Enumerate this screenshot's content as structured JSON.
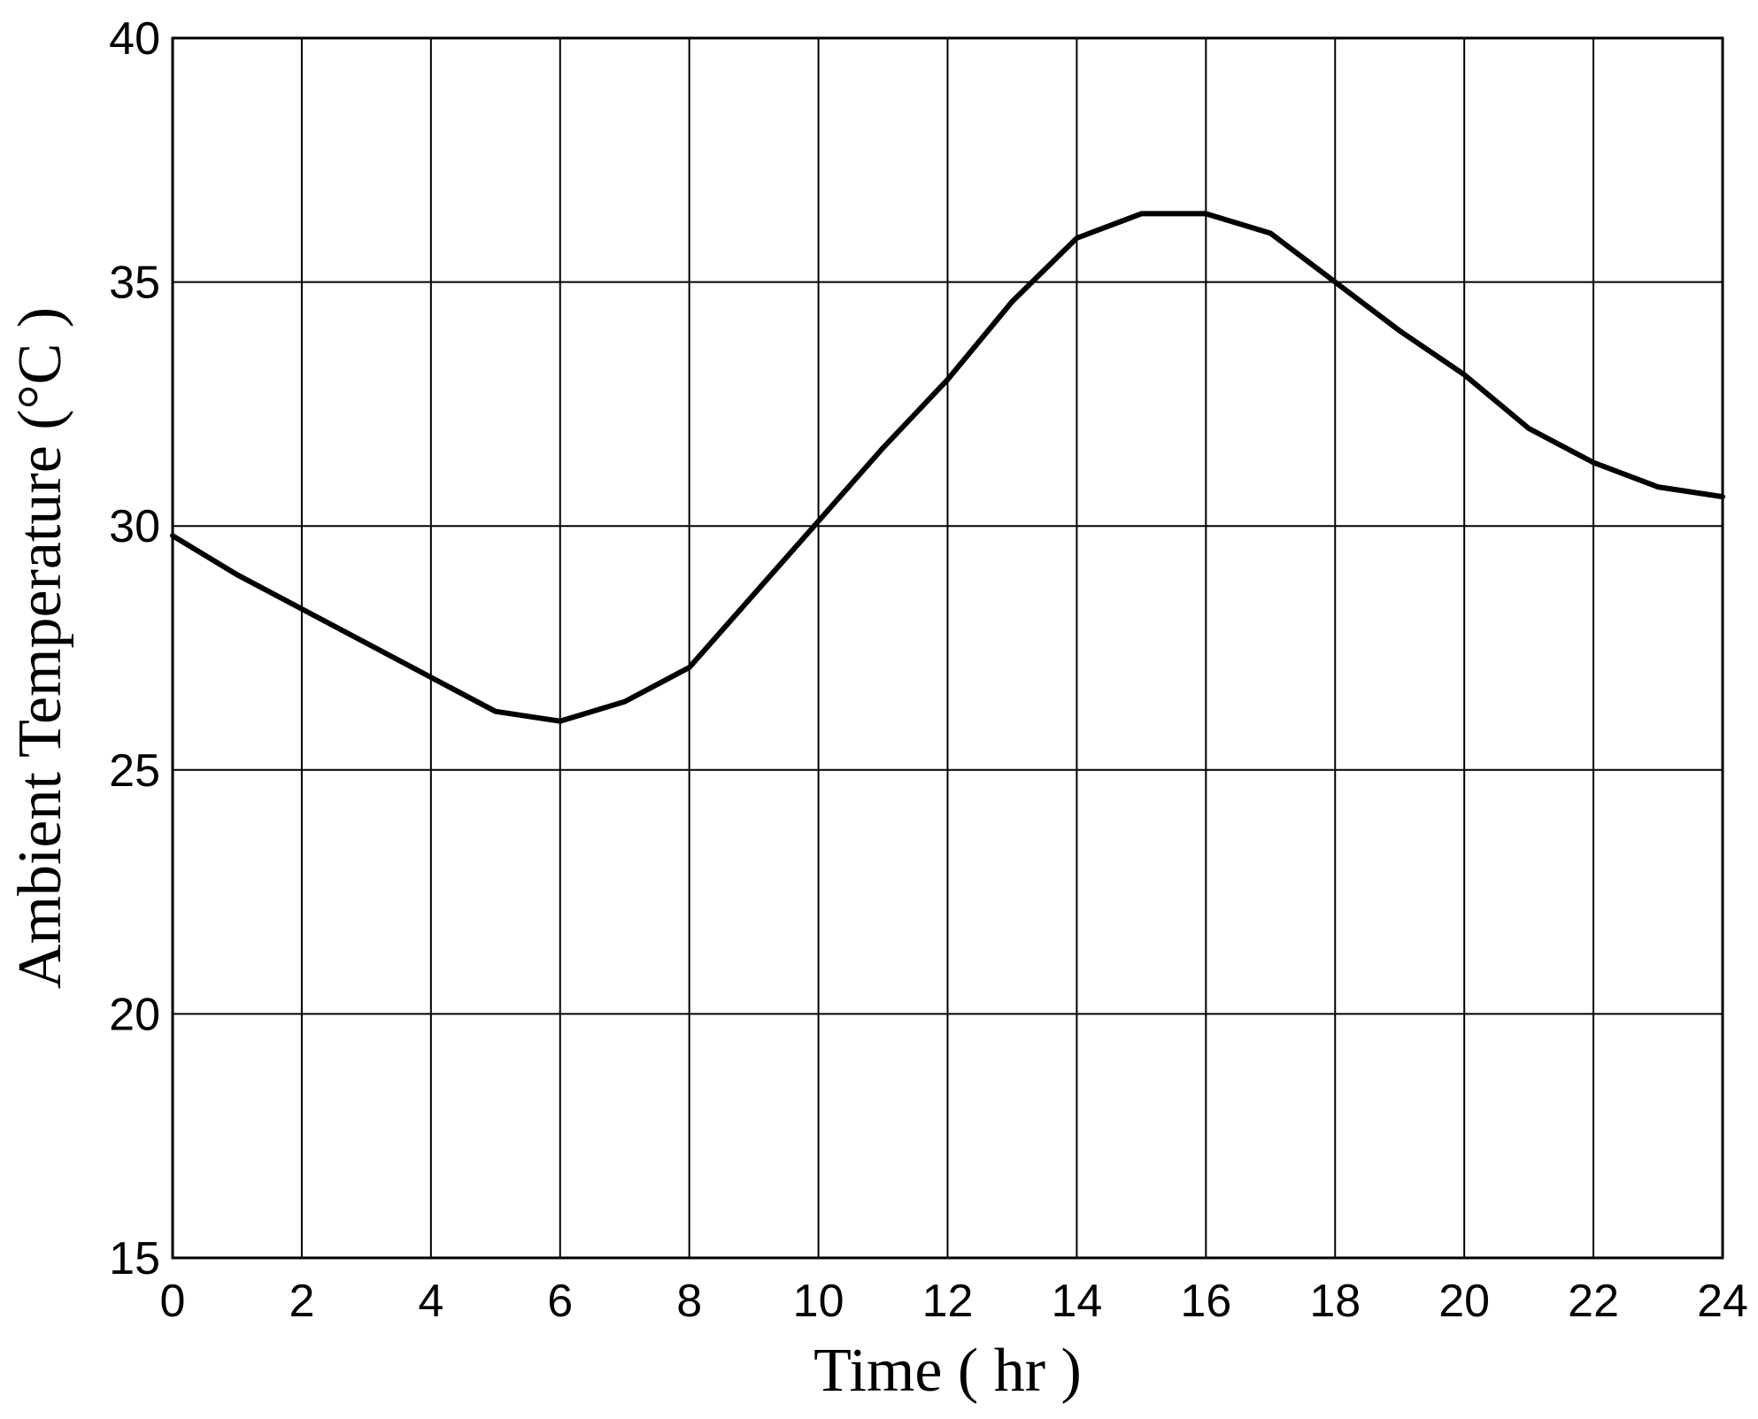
{
  "chart_data": {
    "type": "line",
    "title": "",
    "xlabel": "Time ( hr )",
    "ylabel": "Ambient Temperature (°C )",
    "xlim": [
      0,
      24
    ],
    "ylim": [
      15,
      40
    ],
    "x_ticks": [
      0,
      2,
      4,
      6,
      8,
      10,
      12,
      14,
      16,
      18,
      20,
      22,
      24
    ],
    "y_ticks": [
      15,
      20,
      25,
      30,
      35,
      40
    ],
    "grid": true,
    "legend": "none",
    "line_color": "#000000",
    "series": [
      {
        "x": [
          0,
          1,
          2,
          3,
          4,
          5,
          6,
          7,
          8,
          9,
          10,
          11,
          12,
          13,
          14,
          15,
          16,
          17,
          18,
          19,
          20,
          21,
          22,
          23,
          24
        ],
        "y": [
          29.8,
          29.0,
          28.3,
          27.6,
          26.9,
          26.2,
          26.0,
          26.4,
          27.1,
          28.6,
          30.1,
          31.6,
          33.0,
          34.6,
          35.9,
          36.4,
          36.4,
          36.0,
          35.0,
          34.0,
          33.1,
          32.0,
          31.3,
          30.8,
          30.6
        ]
      }
    ]
  }
}
